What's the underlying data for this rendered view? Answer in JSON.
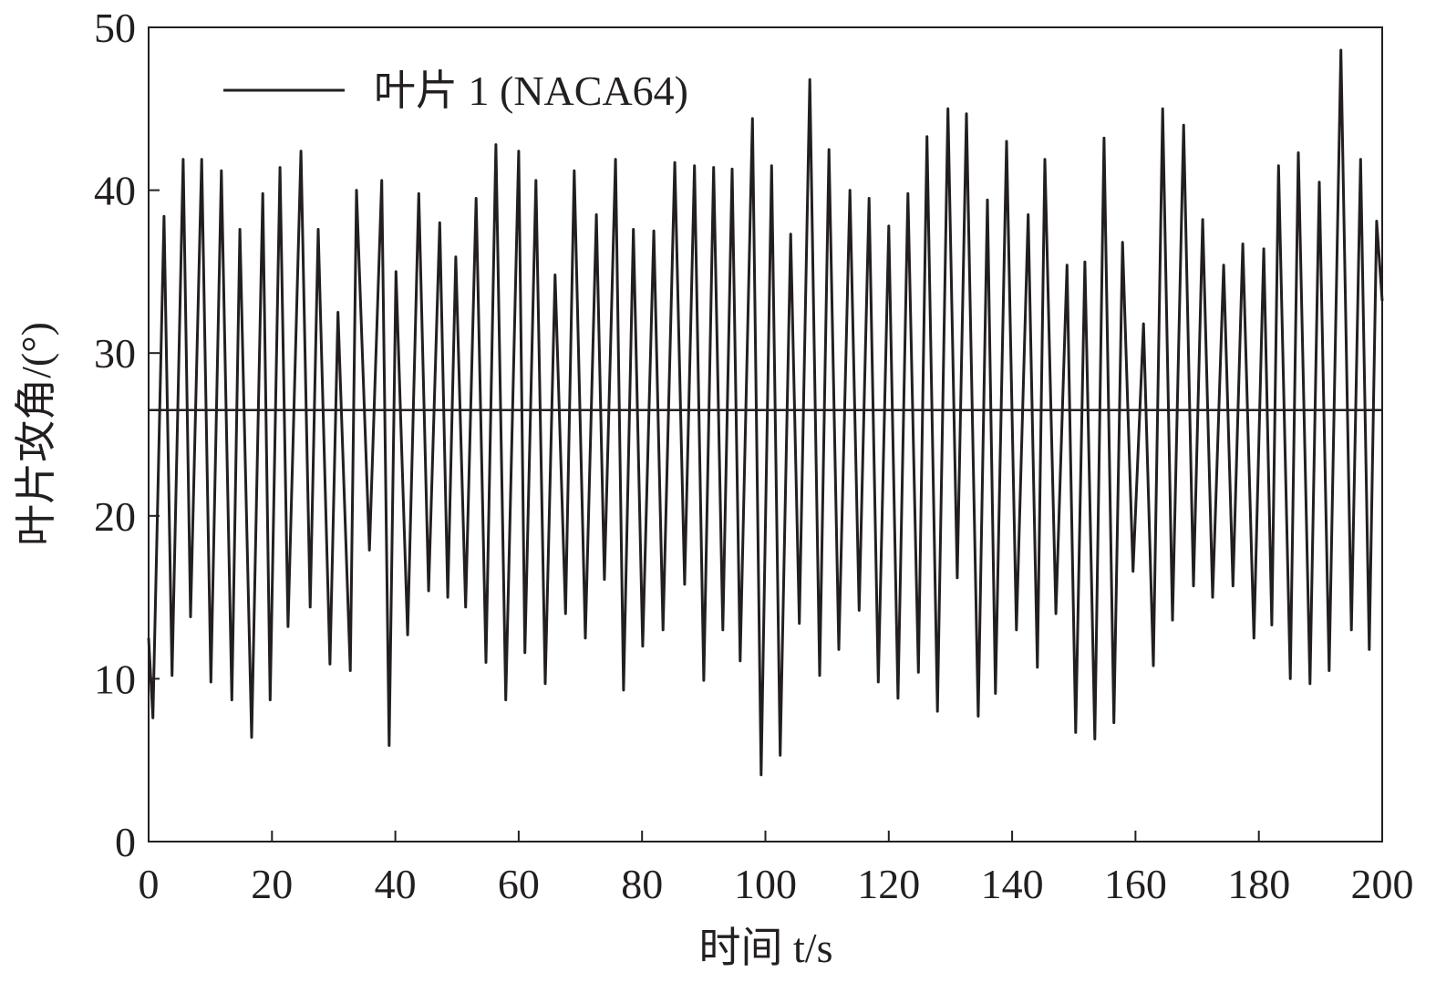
{
  "chart_data": {
    "type": "line",
    "xlabel": "时间 t/s",
    "ylabel": "叶片攻角/(°)",
    "x": [
      0,
      0.7,
      2.5,
      3.8,
      5.6,
      6.8,
      8.6,
      10.1,
      11.8,
      13.5,
      14.8,
      16.7,
      18.5,
      19.7,
      21.3,
      22.6,
      24.7,
      26.2,
      27.5,
      29.4,
      30.7,
      32.7,
      33.7,
      35.8,
      37.8,
      39.0,
      40.1,
      42.0,
      43.8,
      45.4,
      47.2,
      48.5,
      49.8,
      51.4,
      53.1,
      54.7,
      56.3,
      57.9,
      60.0,
      61.0,
      62.8,
      64.3,
      65.9,
      67.6,
      69.0,
      70.8,
      72.6,
      73.9,
      75.7,
      77.0,
      78.6,
      80.1,
      81.9,
      83.4,
      85.3,
      86.9,
      88.5,
      90.0,
      91.6,
      93.1,
      94.6,
      95.9,
      97.9,
      99.3,
      101.0,
      102.4,
      104.1,
      105.5,
      107.2,
      108.8,
      110.3,
      111.9,
      113.7,
      115.2,
      116.8,
      118.3,
      120.0,
      121.5,
      123.1,
      124.8,
      126.2,
      127.9,
      129.6,
      131.1,
      132.6,
      134.5,
      136.0,
      137.3,
      139.1,
      140.7,
      142.6,
      144.1,
      145.3,
      147.1,
      148.9,
      150.3,
      151.8,
      153.4,
      154.9,
      156.5,
      157.9,
      159.6,
      161.3,
      162.9,
      164.4,
      166.0,
      167.8,
      169.4,
      170.9,
      172.5,
      174.3,
      175.8,
      177.4,
      179.2,
      180.8,
      182.1,
      183.2,
      185.1,
      186.4,
      188.3,
      189.8,
      191.4,
      193.3,
      195.0,
      196.5,
      197.9,
      199.1,
      200.0
    ],
    "series": [
      {
        "name": "叶片 1 (NACA64)",
        "color": "#231f20",
        "values": [
          12.5,
          7.6,
          38.4,
          10.2,
          41.9,
          13.8,
          41.9,
          9.8,
          41.2,
          8.7,
          37.6,
          6.4,
          39.8,
          8.7,
          41.4,
          13.2,
          42.4,
          14.4,
          37.6,
          10.9,
          32.5,
          10.5,
          40.0,
          17.9,
          40.6,
          5.9,
          35.0,
          12.7,
          39.8,
          15.4,
          38.0,
          15.0,
          35.9,
          14.4,
          39.5,
          11.0,
          42.8,
          8.7,
          42.4,
          11.6,
          40.6,
          9.7,
          34.8,
          14.0,
          41.2,
          12.5,
          38.5,
          16.1,
          41.9,
          9.3,
          37.6,
          12.0,
          37.5,
          13.0,
          41.7,
          15.8,
          41.5,
          9.9,
          41.4,
          13.0,
          41.3,
          11.1,
          44.4,
          4.1,
          41.5,
          5.3,
          37.3,
          13.4,
          46.8,
          10.2,
          42.5,
          11.8,
          40.0,
          14.2,
          39.5,
          9.8,
          37.8,
          8.8,
          39.8,
          10.4,
          43.3,
          8.0,
          45.0,
          16.2,
          44.7,
          7.7,
          39.4,
          9.1,
          43.0,
          13.0,
          38.5,
          10.7,
          41.9,
          14.0,
          35.4,
          6.7,
          35.6,
          6.3,
          43.2,
          7.3,
          36.8,
          16.6,
          31.8,
          10.8,
          45.0,
          13.6,
          44.0,
          15.7,
          38.2,
          15.0,
          35.4,
          15.7,
          36.7,
          12.5,
          36.4,
          13.3,
          41.5,
          10.0,
          42.3,
          9.7,
          40.5,
          10.5,
          48.6,
          13.0,
          41.9,
          11.8,
          38.1,
          33.2
        ]
      }
    ],
    "reference_line": 26.5,
    "xlim": [
      0,
      200
    ],
    "xticks": [
      0,
      20,
      40,
      60,
      80,
      100,
      120,
      140,
      160,
      180,
      200
    ],
    "ylim": [
      0,
      50
    ],
    "yticks": [
      0,
      10,
      20,
      30,
      40,
      50
    ],
    "legend": "top-left",
    "grid": false
  }
}
